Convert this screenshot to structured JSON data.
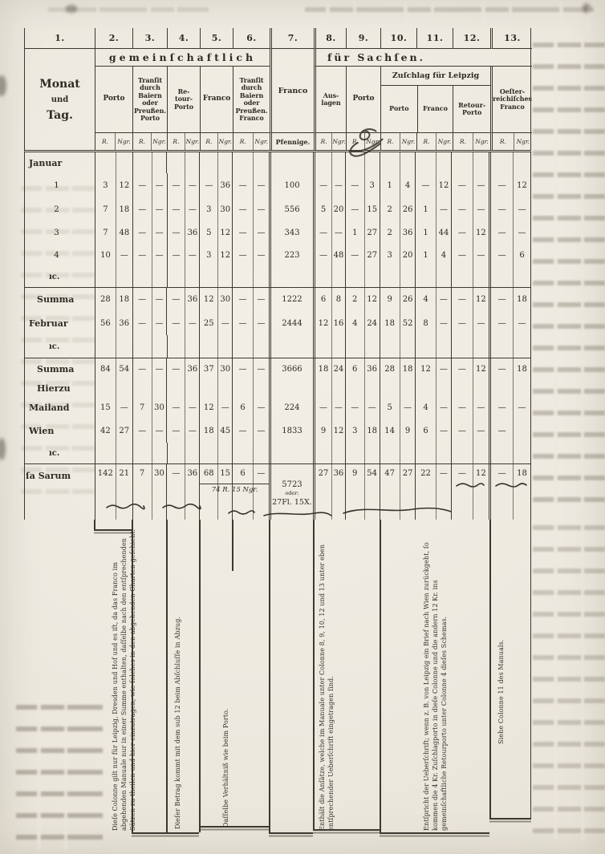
{
  "header": {
    "column_numbers": [
      "1.",
      "2.",
      "3.",
      "4.",
      "5.",
      "6.",
      "7.",
      "8.",
      "9.",
      "10.",
      "11.",
      "12.",
      "13."
    ],
    "group_common": "gemeinſchaftlich",
    "group_saxony": "für Sachſen.",
    "group_leipzig": "Zuſchlag für Leipzig",
    "col1": [
      "Monat",
      "und",
      "Tag."
    ],
    "col2": "Porto",
    "col3": "Tranſit\ndurch\nBaiern\noder\nPreußen.\nPorto",
    "col4": "Re-\ntour-\nPorto",
    "col5": "Franco",
    "col6": "Tranſit\ndurch\nBaiern\noder\nPreußen.\nFranco",
    "col7": "Franco",
    "col7_unit": "Pfennige.",
    "col8": "Aus-\nlagen",
    "col9": "Porto",
    "col10": "Porto",
    "col11": "Franco",
    "col12": "Retour-\nPorto",
    "col13": "Oeſter-\nreichiſches\nFranco",
    "unit_l": "R.",
    "unit_r": "Ngr."
  },
  "rows": [
    {
      "label": "Januar",
      "cls": "month"
    },
    {
      "label": "1",
      "cls": "day",
      "c": [
        [
          "3",
          "12"
        ],
        [
          "—",
          "—"
        ],
        [
          "—",
          "—"
        ],
        [
          "—",
          "36"
        ],
        [
          "—",
          "—"
        ],
        "100",
        [
          "—",
          "—"
        ],
        [
          "—",
          "3"
        ],
        [
          "1",
          "4"
        ],
        [
          "—",
          "12"
        ],
        [
          "—",
          "—"
        ],
        [
          "—",
          "12"
        ]
      ]
    },
    {
      "label": "2",
      "cls": "day",
      "c": [
        [
          "7",
          "18"
        ],
        [
          "—",
          "—"
        ],
        [
          "—",
          "—"
        ],
        [
          "3",
          "30"
        ],
        [
          "—",
          "—"
        ],
        "556",
        [
          "5",
          "20"
        ],
        [
          "—",
          "15"
        ],
        [
          "2",
          "26"
        ],
        [
          "1",
          "—"
        ],
        [
          "—",
          "—"
        ],
        [
          "—",
          "—"
        ]
      ]
    },
    {
      "label": "3",
      "cls": "day",
      "c": [
        [
          "7",
          "48"
        ],
        [
          "—",
          "—"
        ],
        [
          "—",
          "36"
        ],
        [
          "5",
          "12"
        ],
        [
          "—",
          "—"
        ],
        "343",
        [
          "—",
          "—"
        ],
        [
          "1",
          "27"
        ],
        [
          "2",
          "36"
        ],
        [
          "1",
          "44"
        ],
        [
          "—",
          "12"
        ],
        [
          "—",
          "—"
        ]
      ]
    },
    {
      "label": "4",
      "cls": "day",
      "c": [
        [
          "10",
          "—"
        ],
        [
          "—",
          "—"
        ],
        [
          "—",
          "—"
        ],
        [
          "3",
          "12"
        ],
        [
          "—",
          "—"
        ],
        "223",
        [
          "—",
          "48"
        ],
        [
          "—",
          "27"
        ],
        [
          "3",
          "20"
        ],
        [
          "1",
          "4"
        ],
        [
          "—",
          "—"
        ],
        [
          "—",
          "6"
        ]
      ]
    },
    {
      "label": "ıc.",
      "cls": "etc"
    },
    {
      "label": "Summa",
      "cls": "summa",
      "rule": true,
      "c": [
        [
          "28",
          "18"
        ],
        [
          "—",
          "—"
        ],
        [
          "—",
          "36"
        ],
        [
          "12",
          "30"
        ],
        [
          "—",
          "—"
        ],
        "1222",
        [
          "6",
          "8"
        ],
        [
          "2",
          "12"
        ],
        [
          "9",
          "26"
        ],
        [
          "4",
          "—"
        ],
        [
          "—",
          "12"
        ],
        [
          "—",
          "18"
        ]
      ]
    },
    {
      "label": "Februar",
      "cls": "month",
      "c": [
        [
          "56",
          "36"
        ],
        [
          "—",
          "—"
        ],
        [
          "—",
          "—"
        ],
        [
          "25",
          "—"
        ],
        [
          "—",
          "—"
        ],
        "2444",
        [
          "12",
          "16"
        ],
        [
          "4",
          "24"
        ],
        [
          "18",
          "52"
        ],
        [
          "8",
          "—"
        ],
        [
          "—",
          "—"
        ],
        [
          "—",
          "—"
        ]
      ]
    },
    {
      "label": "ıc.",
      "cls": "etc"
    },
    {
      "label": "Summa",
      "cls": "summa",
      "rule": true,
      "c": [
        [
          "84",
          "54"
        ],
        [
          "—",
          "—"
        ],
        [
          "—",
          "36"
        ],
        [
          "37",
          "30"
        ],
        [
          "—",
          "—"
        ],
        "3666",
        [
          "18",
          "24"
        ],
        [
          "6",
          "36"
        ],
        [
          "28",
          "18"
        ],
        [
          "12",
          "—"
        ],
        [
          "—",
          "12"
        ],
        [
          "—",
          "18"
        ]
      ]
    },
    {
      "label": "Hierzu",
      "cls": "summa"
    },
    {
      "label": "Mailand",
      "cls": "month",
      "c": [
        [
          "15",
          "—"
        ],
        [
          "7",
          "30"
        ],
        [
          "—",
          "—"
        ],
        [
          "12",
          "—"
        ],
        [
          "6",
          "—"
        ],
        "224",
        [
          "—",
          "—"
        ],
        [
          "—",
          "—"
        ],
        [
          "5",
          "—"
        ],
        [
          "4",
          "—"
        ],
        [
          "—",
          "—"
        ],
        [
          "—",
          "—"
        ]
      ]
    },
    {
      "label": "Wien",
      "cls": "month",
      "c": [
        [
          "42",
          "27"
        ],
        [
          "—",
          "—"
        ],
        [
          "—",
          "—"
        ],
        [
          "18",
          "45"
        ],
        [
          "—",
          "—"
        ],
        "1833",
        [
          "9",
          "12"
        ],
        [
          "3",
          "18"
        ],
        [
          "14",
          "9"
        ],
        [
          "6",
          "—"
        ],
        [
          "—",
          "—"
        ],
        [
          "—",
          ""
        ]
      ]
    },
    {
      "label": "ıc.",
      "cls": "etc"
    },
    {
      "label": "ſa Sarum",
      "cls": "grand",
      "rule": true,
      "grand": true,
      "c": [
        [
          "142",
          "21"
        ],
        [
          "7",
          "30"
        ],
        [
          "—",
          "36"
        ],
        [
          "68",
          "15"
        ],
        [
          "6",
          "—"
        ],
        "5723",
        [
          "27",
          "36"
        ],
        [
          "9",
          "54"
        ],
        [
          "47",
          "27"
        ],
        [
          "22",
          "—"
        ],
        [
          "—",
          "12"
        ],
        [
          "—",
          "18"
        ]
      ]
    }
  ],
  "grand": {
    "oder": "oder:",
    "fl": "27Fl. 15X.",
    "subtotal": "74 R. 15 Ngr."
  },
  "footnotes": {
    "fn_transit": "Dieſe Colonne gilt nur für Leipzig, Dresden und Hof und es iſt, da das Franco im abgehenden Manuale nur in einer Summe enthalten, daſſelbe nach den entſprechenden Sätzen zu theilen und hier einzutragen, wie ſolches in den abgehenden Charten geſchieht.",
    "fn_retour": "Dieſer Betrag kommt mit dem sub 12 beim Abſchluſſe in Abzug.",
    "fn_franco": "Daſſelbe Verhältniß wie beim Porto.",
    "fn_pfennige": "Enthält die Anſätze, welche im Manuale unter Colonne 8, 9, 10, 12 und 13 unter eben entſprechender Ueberſchrift eingetragen ſind.",
    "fn_zuschlag": "Entſpricht der Ueberſchrift; wenn z. B. von Leipzig ein Brief nach Wien zurückgeht, ſo kommen die 4 Kr. Zuſchlagporto in dieſe Colonne und die andern 12 Kr. ins gemeinſchaftliche Retourporto unter Colonne 4 dieſes Schemas.",
    "fn_oesterreich": "Siehe Colonne 11 des Manuals."
  }
}
